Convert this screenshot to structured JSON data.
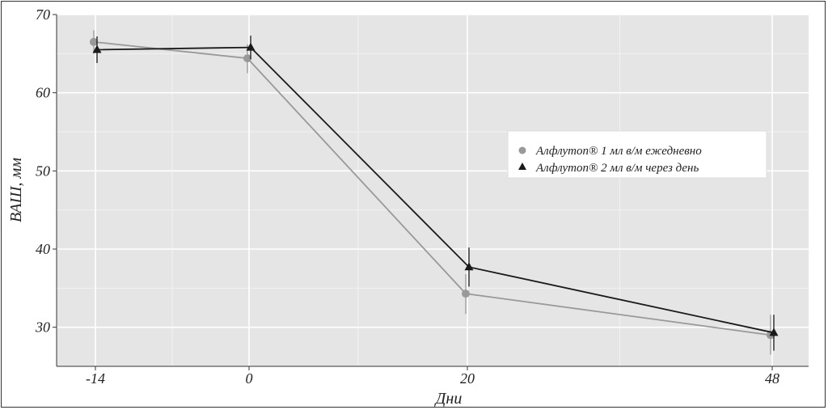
{
  "chart_data": {
    "type": "line",
    "xlabel": "Дни",
    "ylabel": "ВАШ, мм",
    "x_ticks": [
      "-14",
      "0",
      "20",
      "48"
    ],
    "y_ticks": [
      30,
      40,
      50,
      60,
      70
    ],
    "ylim": [
      25,
      70
    ],
    "x": [
      "-14",
      "0",
      "20",
      "48"
    ],
    "series": [
      {
        "name": "Алфлутоп® 1 мл в/м ежедневно",
        "marker": "circle",
        "color": "#999999",
        "values": [
          66.5,
          64.4,
          34.3,
          29.0
        ],
        "error_low": [
          65.0,
          62.5,
          31.7,
          26.5
        ],
        "error_high": [
          68.0,
          66.2,
          36.8,
          31.6
        ]
      },
      {
        "name": "Алфлутоп® 2 мл в/м через день",
        "marker": "triangle",
        "color": "#1a1a1a",
        "values": [
          65.5,
          65.8,
          37.7,
          29.3
        ],
        "error_low": [
          63.8,
          64.3,
          35.2,
          27.0
        ],
        "error_high": [
          67.2,
          67.3,
          40.2,
          31.6
        ]
      }
    ],
    "grid": true,
    "background": "#e5e5e5",
    "legend_position": "right"
  }
}
